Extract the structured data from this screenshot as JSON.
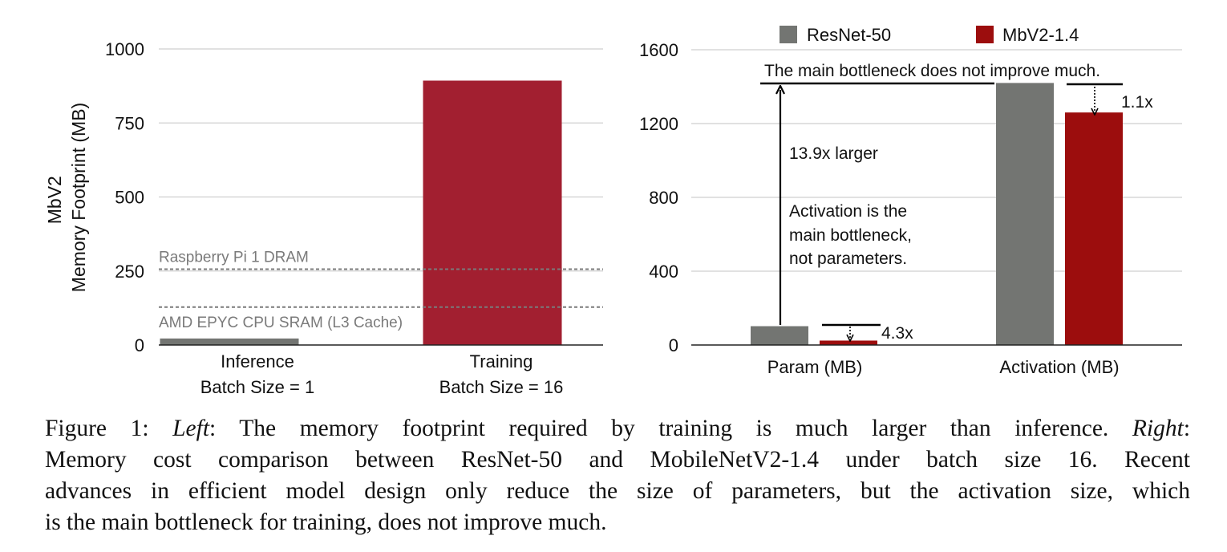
{
  "chart_data": [
    {
      "type": "bar",
      "title": "",
      "ylabel_lines": [
        "MbV2",
        "Memory Footprint (MB)"
      ],
      "ylim": [
        0,
        1000
      ],
      "yticks": [
        0,
        250,
        500,
        750,
        1000
      ],
      "categories": [
        [
          "Inference",
          "Batch Size = 1"
        ],
        [
          "Training",
          "Batch Size = 16"
        ]
      ],
      "values": [
        22,
        893
      ],
      "bar_colors": [
        "#737572",
        "#a21f30"
      ],
      "grid": true,
      "reference_lines": [
        {
          "label": "Raspberry Pi 1 DRAM",
          "value": 256
        },
        {
          "label": "AMD EPYC CPU SRAM (L3 Cache)",
          "value": 128
        }
      ]
    },
    {
      "type": "bar",
      "title": "",
      "ylim": [
        0,
        1600
      ],
      "yticks": [
        0,
        400,
        800,
        1200,
        1600
      ],
      "categories": [
        "Param (MB)",
        "Activation (MB)"
      ],
      "series": [
        {
          "name": "ResNet-50",
          "color": "#737572",
          "values": [
            102,
            1420
          ]
        },
        {
          "name": "MbV2-1.4",
          "color": "#9c0d0d",
          "values": [
            24,
            1260
          ]
        }
      ],
      "legend_position": "top",
      "grid": true,
      "annotations": {
        "top_note": "The main bottleneck does not improve much.",
        "larger": "13.9x larger",
        "bottleneck_lines": [
          "Activation is the",
          "main bottleneck,",
          "not parameters."
        ],
        "param_ratio": "4.3x",
        "act_ratio": "1.1x"
      }
    }
  ],
  "caption": {
    "line1_label": "Figure 1: ",
    "left_word": "Left",
    "line1_rest": ": The memory footprint required by training is much larger than inference. ",
    "right_word": "Right",
    "right_colon": ":",
    "line2": "Memory cost comparison between ResNet-50 and MobileNetV2-1.4 under batch size 16. Recent",
    "line3": "advances in efficient model design only reduce the size of parameters, but the activation size, which",
    "line4": "is the main bottleneck for training, does not improve much."
  }
}
